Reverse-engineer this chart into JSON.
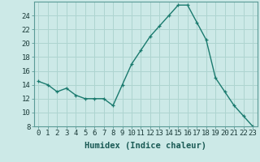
{
  "x": [
    0,
    1,
    2,
    3,
    4,
    5,
    6,
    7,
    8,
    9,
    10,
    11,
    12,
    13,
    14,
    15,
    16,
    17,
    18,
    19,
    20,
    21,
    22,
    23
  ],
  "y": [
    14.5,
    14.0,
    13.0,
    13.5,
    12.5,
    12.0,
    12.0,
    12.0,
    11.0,
    14.0,
    17.0,
    19.0,
    21.0,
    22.5,
    24.0,
    25.5,
    25.5,
    23.0,
    20.5,
    15.0,
    13.0,
    11.0,
    9.5,
    8.0
  ],
  "line_color": "#1a7a6e",
  "marker": "+",
  "marker_size": 3,
  "bg_color": "#cce9e7",
  "grid_color": "#aed4d0",
  "xlabel": "Humidex (Indice chaleur)",
  "ylabel": "",
  "title": "",
  "xlim": [
    -0.5,
    23.5
  ],
  "ylim": [
    8,
    26
  ],
  "yticks": [
    8,
    10,
    12,
    14,
    16,
    18,
    20,
    22,
    24
  ],
  "xticks": [
    0,
    1,
    2,
    3,
    4,
    5,
    6,
    7,
    8,
    9,
    10,
    11,
    12,
    13,
    14,
    15,
    16,
    17,
    18,
    19,
    20,
    21,
    22,
    23
  ],
  "tick_fontsize": 6.5,
  "xlabel_fontsize": 7.5
}
